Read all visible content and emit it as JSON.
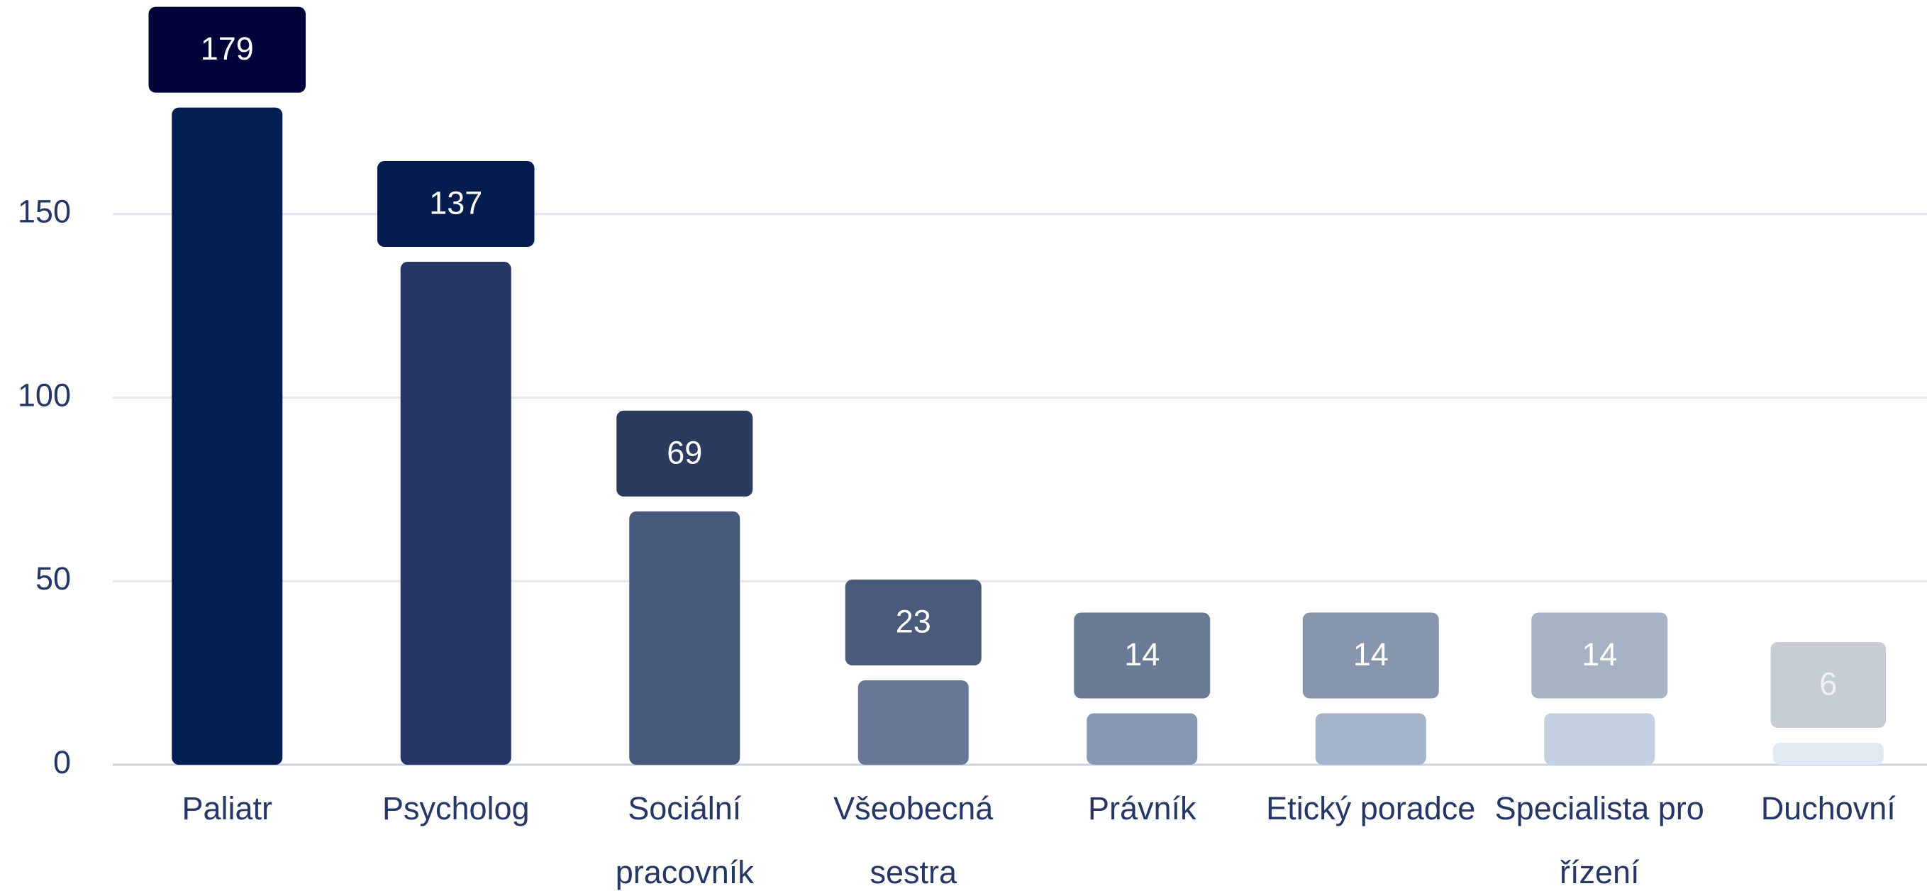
{
  "chart_data": {
    "type": "bar",
    "categories": [
      "Paliatr",
      "Psycholog",
      "Sociální pracovník",
      "Všeobecná sestra",
      "Právník",
      "Etický poradce",
      "Specialista pro řízení",
      "Duchovní"
    ],
    "values": [
      179,
      137,
      69,
      23,
      14,
      14,
      14,
      6
    ],
    "colors": [
      "#031e52",
      "#263766",
      "#46587c",
      "#687796",
      "#8797b4",
      "#a6b4cb",
      "#c3d0e1",
      "#e1e9f3"
    ],
    "label_colors": [
      "#03053a",
      "#041c4e",
      "#2a3b5f",
      "#4a5a7a",
      "#6a7b96",
      "#8796ad",
      "#a6b3c5",
      "#c7cdd4"
    ],
    "ylim": [
      0,
      200
    ],
    "yticks": [
      0,
      50,
      100,
      150
    ],
    "grid": true
  }
}
